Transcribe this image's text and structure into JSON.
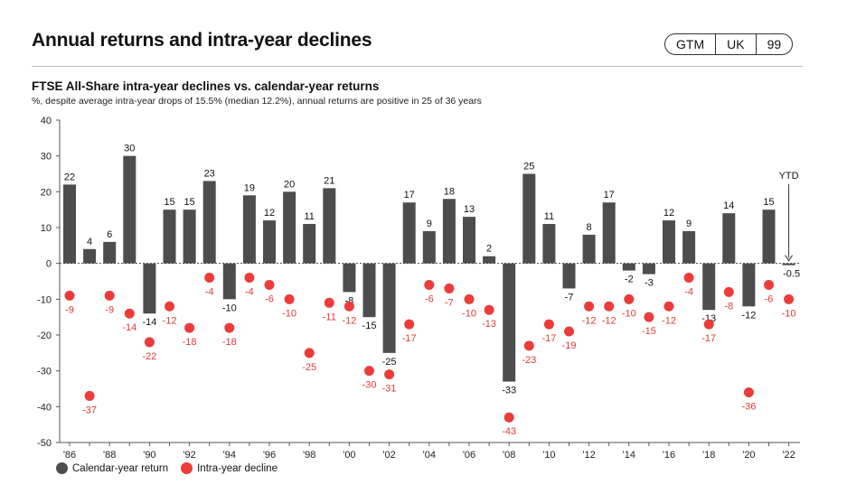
{
  "header": {
    "title": "Annual returns and intra-year declines",
    "tags": [
      "GTM",
      "UK",
      "99"
    ]
  },
  "colors": {
    "bar": "#4d4d4f",
    "dot": "#ec3b3b",
    "label_dot": "#e03a3a"
  },
  "chart_data": {
    "type": "bar",
    "title": "FTSE All-Share intra-year declines vs. calendar-year returns",
    "subtitle": "%, despite average intra-year drops of 15.5% (median 12.2%), annual returns are positive in 25 of 36 years",
    "ylim": [
      -50,
      40
    ],
    "yticks": [
      40,
      30,
      20,
      10,
      0,
      -10,
      -20,
      -30,
      -40,
      -50
    ],
    "categories": [
      "1986",
      "1987",
      "1988",
      "1989",
      "1990",
      "1991",
      "1992",
      "1993",
      "1994",
      "1995",
      "1996",
      "1997",
      "1998",
      "1999",
      "2000",
      "2001",
      "2002",
      "2003",
      "2004",
      "2005",
      "2006",
      "2007",
      "2008",
      "2009",
      "2010",
      "2011",
      "2012",
      "2013",
      "2014",
      "2015",
      "2016",
      "2017",
      "2018",
      "2019",
      "2020",
      "2021",
      "2022"
    ],
    "xtick_labels": [
      "'86",
      "",
      "'88",
      "",
      "'90",
      "",
      "'92",
      "",
      "'94",
      "",
      "'96",
      "",
      "'98",
      "",
      "'00",
      "",
      "'02",
      "",
      "'04",
      "",
      "'06",
      "",
      "'08",
      "",
      "'10",
      "",
      "'12",
      "",
      "'14",
      "",
      "'16",
      "",
      "'18",
      "",
      "'20",
      "",
      "'22"
    ],
    "series": [
      {
        "name": "Calendar-year return",
        "kind": "bar",
        "values": [
          22,
          4,
          6,
          30,
          -14,
          15,
          15,
          23,
          -10,
          19,
          12,
          20,
          11,
          21,
          -8,
          -15,
          -25,
          17,
          9,
          18,
          13,
          2,
          -33,
          25,
          11,
          -7,
          8,
          17,
          -2,
          -3,
          12,
          9,
          -13,
          14,
          -12,
          15,
          -0.5
        ],
        "labels": [
          "22",
          "4",
          "6",
          "30",
          "-14",
          "15",
          "15",
          "23",
          "-10",
          "19",
          "12",
          "20",
          "11",
          "21",
          "-8",
          "-15",
          "-25",
          "17",
          "9",
          "18",
          "13",
          "2",
          "-33",
          "25",
          "11",
          "-7",
          "8",
          "17",
          "-2",
          "-3",
          "12",
          "9",
          "-13",
          "14",
          "-12",
          "15",
          "-0.5"
        ]
      },
      {
        "name": "Intra-year decline",
        "kind": "scatter",
        "values": [
          -9,
          -37,
          -9,
          -14,
          -22,
          -12,
          -18,
          -4,
          -18,
          -4,
          -6,
          -10,
          -25,
          -11,
          -12,
          -30,
          -31,
          -17,
          -6,
          -7,
          -10,
          -13,
          -43,
          -23,
          -17,
          -19,
          -12,
          -12,
          -10,
          -15,
          -12,
          -4,
          -17,
          -8,
          -36,
          -6,
          -10
        ],
        "labels": [
          "-9",
          "-37",
          "-9",
          "-14",
          "-22",
          "-12",
          "-18",
          "-4",
          "-18",
          "-4",
          "-6",
          "-10",
          "-25",
          "-11",
          "-12",
          "-30",
          "-31",
          "-17",
          "-6",
          "-7",
          "-10",
          "-13",
          "-43",
          "-23",
          "-17",
          "-19",
          "-12",
          "-12",
          "-10",
          "-15",
          "-12",
          "-4",
          "-17",
          "-8",
          "-36",
          "-6",
          "-10"
        ]
      }
    ],
    "annotation": "YTD",
    "legend": "bottom-left"
  }
}
